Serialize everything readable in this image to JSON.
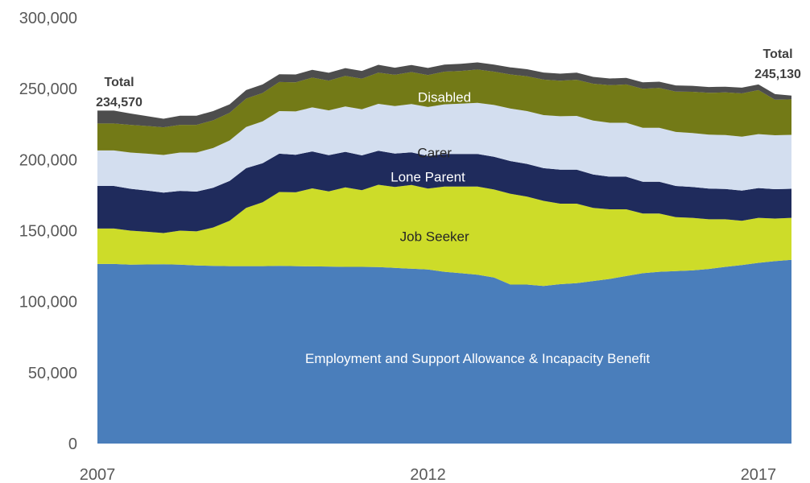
{
  "chart_data": {
    "type": "area",
    "stacked": true,
    "title": "",
    "xlabel": "",
    "ylabel": "",
    "ylim": [
      0,
      300000
    ],
    "y_ticks": [
      "0",
      "50,000",
      "100,000",
      "150,000",
      "200,000",
      "250,000",
      "300,000"
    ],
    "y_tick_values": [
      0,
      50000,
      100000,
      150000,
      200000,
      250000,
      300000
    ],
    "x_ticks": [
      "2007",
      "2012",
      "2017"
    ],
    "x_tick_values": [
      2007,
      2012,
      2017
    ],
    "grid": false,
    "x": [
      2007.25,
      2007.5,
      2007.75,
      2008,
      2008.25,
      2008.5,
      2008.75,
      2009,
      2009.25,
      2009.5,
      2009.75,
      2010,
      2010.25,
      2010.5,
      2010.75,
      2011,
      2011.25,
      2011.5,
      2011.75,
      2012,
      2012.25,
      2012.5,
      2012.75,
      2013,
      2013.25,
      2013.5,
      2013.75,
      2014,
      2014.25,
      2014.5,
      2014.75,
      2015,
      2015.25,
      2015.5,
      2015.75,
      2016,
      2016.25,
      2016.5,
      2016.75,
      2017,
      2017.25,
      2017.5
    ],
    "series": [
      {
        "name": "Employment and Support Allowance & Incapacity Benefit",
        "color": "#4a7ebb",
        "label_color": "#ffffff",
        "values": [
          126500,
          126000,
          126200,
          126300,
          126000,
          125500,
          125200,
          125000,
          125000,
          125000,
          125200,
          125000,
          124800,
          124700,
          124500,
          124500,
          124300,
          123800,
          123200,
          122600,
          121000,
          120000,
          119000,
          117000,
          112000,
          112000,
          111000,
          112300,
          113000,
          114500,
          116000,
          118000,
          120000,
          121000,
          121500,
          122000,
          123000,
          124500,
          125800,
          127300,
          128500,
          129400
        ]
      },
      {
        "name": "Job Seeker",
        "color": "#cddc29",
        "label_color": "#262626",
        "values": [
          25000,
          24000,
          23000,
          22000,
          24000,
          24000,
          27000,
          32000,
          41000,
          45000,
          52000,
          52000,
          55000,
          53000,
          56000,
          54000,
          58000,
          57000,
          59000,
          57000,
          60000,
          61000,
          62000,
          62000,
          64000,
          62000,
          60000,
          56700,
          56000,
          51500,
          49000,
          47000,
          42000,
          41000,
          38000,
          37000,
          35000,
          33500,
          31200,
          31700,
          30000,
          29600
        ]
      },
      {
        "name": "Lone Parent",
        "color": "#1f2b5c",
        "label_color": "#ffffff",
        "values": [
          30000,
          29500,
          29000,
          28500,
          28000,
          28000,
          28000,
          28000,
          28000,
          27500,
          27000,
          26500,
          26000,
          25500,
          25000,
          24500,
          24000,
          23500,
          23000,
          23000,
          23000,
          23000,
          23000,
          23000,
          23000,
          23000,
          23000,
          24000,
          24000,
          23500,
          23000,
          23000,
          22500,
          22500,
          22000,
          21800,
          21600,
          21400,
          21200,
          21000,
          20700,
          20500
        ]
      },
      {
        "name": "Carer",
        "color": "#d3deef",
        "label_color": "#262626",
        "values": [
          25000,
          25500,
          26000,
          26500,
          27000,
          27500,
          28000,
          28500,
          29000,
          29500,
          30000,
          30500,
          31000,
          31500,
          32000,
          32500,
          33000,
          33500,
          34000,
          34500,
          35000,
          35500,
          36000,
          36500,
          37000,
          37200,
          37400,
          37600,
          37800,
          38000,
          38000,
          38000,
          38000,
          38000,
          38000,
          38000,
          38000,
          38000,
          38000,
          38000,
          38000,
          38000
        ]
      },
      {
        "name": "Disabled",
        "color": "#737a17",
        "label_color": "#ffffff",
        "values": [
          19000,
          19500,
          19500,
          19500,
          19500,
          19500,
          19500,
          19500,
          20000,
          20000,
          20500,
          20500,
          21000,
          21000,
          21500,
          21500,
          22000,
          22000,
          22500,
          22500,
          23000,
          23000,
          23500,
          23500,
          24000,
          24500,
          25000,
          25000,
          25500,
          26000,
          26500,
          27000,
          27500,
          28000,
          28500,
          29000,
          29500,
          30000,
          30500,
          31000,
          25000,
          25000
        ]
      },
      {
        "name": "",
        "color": "#4d4d4d",
        "values": [
          9070,
          8000,
          7000,
          6000,
          6500,
          6500,
          6500,
          6000,
          6000,
          6000,
          5500,
          5500,
          5500,
          5500,
          5500,
          5500,
          5500,
          5000,
          5000,
          5000,
          5000,
          5000,
          5000,
          5000,
          5000,
          5000,
          5000,
          5000,
          5000,
          4800,
          4700,
          4600,
          4500,
          4400,
          4300,
          4200,
          4100,
          4000,
          4000,
          4000,
          4000,
          2630
        ]
      }
    ],
    "labels": [
      {
        "text": "Employment and Support Allowance & Incapacity Benefit",
        "x": 2012.75,
        "y": 60000
      },
      {
        "text": "Job Seeker",
        "x": 2012.1,
        "y": 146000
      },
      {
        "text": "Lone Parent",
        "x": 2012.0,
        "y": 188000
      },
      {
        "text": "Carer",
        "x": 2012.1,
        "y": 205000
      },
      {
        "text": "Disabled",
        "x": 2012.25,
        "y": 244000
      }
    ],
    "totals": [
      {
        "heading": "Total",
        "value": "234,570"
      },
      {
        "heading": "Total",
        "value": "245,130"
      }
    ]
  }
}
